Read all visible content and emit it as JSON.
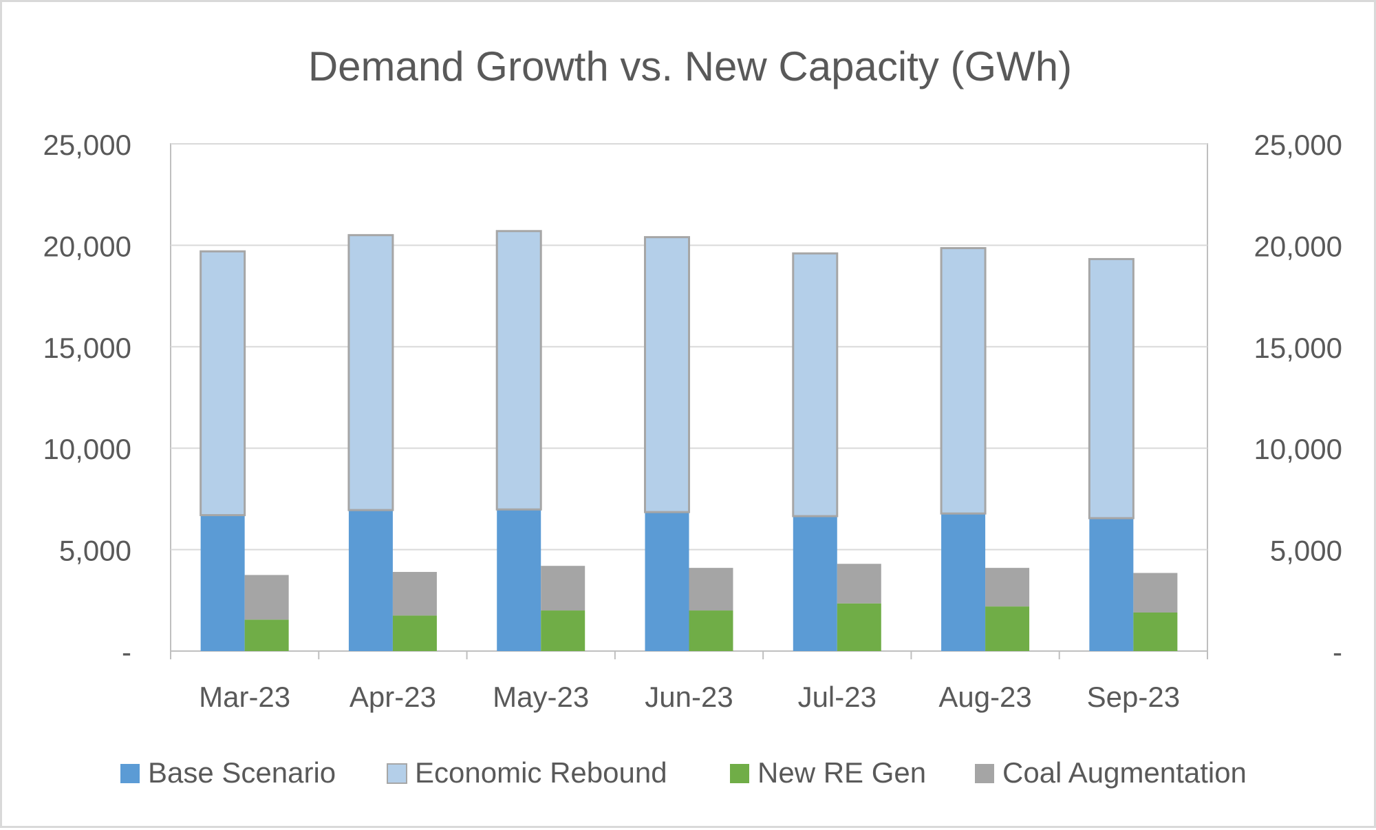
{
  "chart_data": {
    "type": "bar",
    "stacked": true,
    "title": "Demand Growth vs. New Capacity (GWh)",
    "categories": [
      "Mar-23",
      "Apr-23",
      "May-23",
      "Jun-23",
      "Jul-23",
      "Aug-23",
      "Sep-23"
    ],
    "stacks": [
      {
        "series": [
          {
            "name": "Base Scenario",
            "color": "#5b9bd5",
            "values": [
              6700,
              6950,
              6980,
              6850,
              6650,
              6780,
              6550
            ]
          },
          {
            "name": "Economic Rebound",
            "color": "#b4cfe9",
            "values": [
              13000,
              13550,
              13720,
              13550,
              12950,
              13080,
              12770
            ]
          }
        ]
      },
      {
        "series": [
          {
            "name": "New RE Gen",
            "color": "#70ad47",
            "values": [
              1550,
              1750,
              2000,
              2000,
              2350,
              2200,
              1900
            ]
          },
          {
            "name": "Coal Augmentation",
            "color": "#a5a5a5",
            "values": [
              2200,
              2150,
              2200,
              2100,
              1950,
              1900,
              1950
            ]
          }
        ]
      }
    ],
    "legend": {
      "position": "bottom",
      "entries": [
        "Base Scenario",
        "Economic Rebound",
        "New RE Gen",
        "Coal Augmentation"
      ]
    },
    "yaxis": {
      "range": [
        0,
        25000
      ],
      "ticks": [
        0,
        5000,
        10000,
        15000,
        20000,
        25000
      ],
      "tick_labels": [
        "-",
        "5,000",
        "10,000",
        "15,000",
        "20,000",
        "25,000"
      ]
    },
    "y2axis": {
      "range": [
        0,
        25000
      ],
      "tick_labels": [
        "-",
        "5,000",
        "10,000",
        "15,000",
        "20,000",
        "25,000"
      ]
    },
    "grid": true,
    "gridline_color": "#d9d9d9",
    "axis_color": "#bfbfbf",
    "text_color": "#595959"
  }
}
